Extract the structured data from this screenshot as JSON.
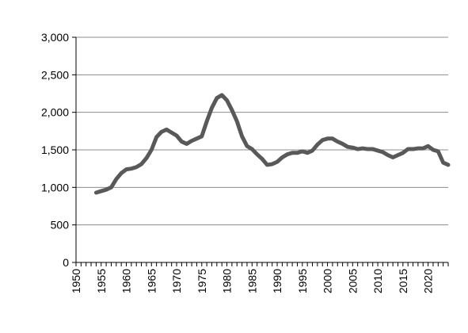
{
  "chart_data": {
    "type": "line",
    "title": "",
    "xlabel": "",
    "ylabel": "",
    "xlim": [
      1950,
      2024
    ],
    "ylim": [
      0,
      3000
    ],
    "x_tick_labels": [
      "1950",
      "1955",
      "1960",
      "1965",
      "1970",
      "1975",
      "1980",
      "1985",
      "1990",
      "1995",
      "2000",
      "2005",
      "2010",
      "2015",
      "2020"
    ],
    "y_tick_labels": [
      "0",
      "500",
      "1,000",
      "1,500",
      "2,000",
      "2,500",
      "3,000"
    ],
    "grid": "horizontal",
    "legend": "none",
    "line_color": "#595959",
    "series": [
      {
        "x": [
          1954,
          1955,
          1956,
          1957,
          1958,
          1959,
          1960,
          1961,
          1962,
          1963,
          1964,
          1965,
          1966,
          1967,
          1968,
          1969,
          1970,
          1971,
          1972,
          1973,
          1974,
          1975,
          1976,
          1977,
          1978,
          1979,
          1980,
          1981,
          1982,
          1983,
          1984,
          1985,
          1986,
          1987,
          1988,
          1989,
          1990,
          1991,
          1992,
          1993,
          1994,
          1995,
          1996,
          1997,
          1998,
          1999,
          2000,
          2001,
          2002,
          2003,
          2004,
          2005,
          2006,
          2007,
          2008,
          2009,
          2010,
          2011,
          2012,
          2013,
          2014,
          2015,
          2016,
          2017,
          2018,
          2019,
          2020,
          2021,
          2022,
          2023,
          2024
        ],
        "values": [
          930,
          950,
          970,
          1000,
          1110,
          1190,
          1240,
          1250,
          1270,
          1310,
          1390,
          1500,
          1670,
          1740,
          1770,
          1730,
          1690,
          1610,
          1580,
          1620,
          1650,
          1680,
          1880,
          2060,
          2190,
          2230,
          2160,
          2030,
          1880,
          1680,
          1550,
          1510,
          1440,
          1380,
          1300,
          1310,
          1340,
          1400,
          1440,
          1460,
          1460,
          1480,
          1460,
          1490,
          1570,
          1630,
          1650,
          1650,
          1610,
          1580,
          1540,
          1530,
          1510,
          1520,
          1510,
          1510,
          1490,
          1470,
          1430,
          1400,
          1430,
          1460,
          1510,
          1510,
          1520,
          1520,
          1550,
          1500,
          1480,
          1330,
          1300
        ]
      }
    ]
  }
}
